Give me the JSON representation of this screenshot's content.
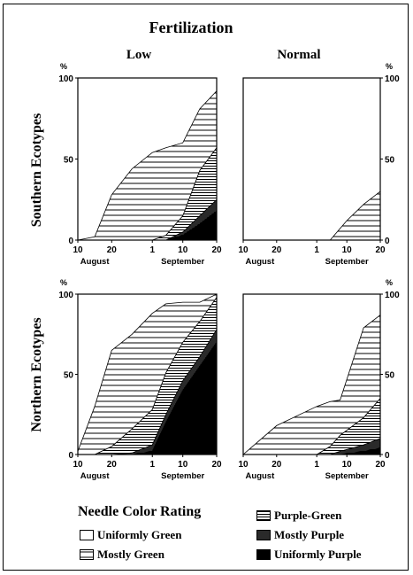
{
  "title": "Fertilization",
  "column_labels": [
    "Low",
    "Normal"
  ],
  "row_labels": [
    "Southern Ecotypes",
    "Northern Ecotypes"
  ],
  "legend_title": "Needle Color Rating",
  "colors": {
    "ink": "#000000",
    "paper": "#ffffff"
  },
  "chart_data": [
    {
      "type": "area",
      "panel": "Southern Ecotypes / Low",
      "percent_label": "%",
      "x_ticks": [
        "10",
        "20",
        "1",
        "10",
        "20"
      ],
      "x_months": [
        "August",
        "September"
      ],
      "y_ticks": [
        "0",
        "50",
        "100"
      ],
      "ylim": [
        0,
        100
      ],
      "x": [
        "Aug 10",
        "Aug 15",
        "Aug 20",
        "Aug 26",
        "Sep 1",
        "Sep 5",
        "Sep 10",
        "Sep 15",
        "Sep 20"
      ],
      "stacked": true,
      "series": [
        {
          "name": "Uniformly Purple",
          "values": [
            0,
            0,
            0,
            0,
            0,
            0,
            3,
            10,
            18
          ]
        },
        {
          "name": "Mostly Purple",
          "values": [
            0,
            0,
            0,
            0,
            0,
            0,
            2,
            5,
            7
          ]
        },
        {
          "name": "Purple-Green",
          "values": [
            0,
            0,
            0,
            0,
            0,
            3,
            10,
            28,
            32
          ]
        },
        {
          "name": "Mostly Green",
          "values": [
            0,
            2,
            28,
            44,
            54,
            54,
            45,
            38,
            35
          ]
        }
      ]
    },
    {
      "type": "area",
      "panel": "Southern Ecotypes / Normal",
      "percent_label": "%",
      "x_ticks": [
        "10",
        "20",
        "1",
        "10",
        "20"
      ],
      "x_months": [
        "August",
        "September"
      ],
      "y_ticks": [
        "0",
        "50",
        "100"
      ],
      "ylim": [
        0,
        100
      ],
      "x": [
        "Aug 10",
        "Aug 20",
        "Sep 1",
        "Sep 5",
        "Sep 10",
        "Sep 15",
        "Sep 20"
      ],
      "stacked": true,
      "series": [
        {
          "name": "Uniformly Purple",
          "values": [
            0,
            0,
            0,
            0,
            0,
            0,
            0
          ]
        },
        {
          "name": "Mostly Purple",
          "values": [
            0,
            0,
            0,
            0,
            0,
            0,
            0
          ]
        },
        {
          "name": "Purple-Green",
          "values": [
            0,
            0,
            0,
            0,
            0,
            0,
            0
          ]
        },
        {
          "name": "Mostly Green",
          "values": [
            0,
            0,
            0,
            0,
            12,
            22,
            30
          ]
        }
      ]
    },
    {
      "type": "area",
      "panel": "Northern Ecotypes / Low",
      "percent_label": "%",
      "x_ticks": [
        "10",
        "20",
        "1",
        "10",
        "20"
      ],
      "x_months": [
        "August",
        "September"
      ],
      "y_ticks": [
        "0",
        "50",
        "100"
      ],
      "ylim": [
        0,
        100
      ],
      "x": [
        "Aug 10",
        "Aug 15",
        "Aug 20",
        "Aug 26",
        "Sep 1",
        "Sep 5",
        "Sep 10",
        "Sep 15",
        "Sep 20"
      ],
      "stacked": true,
      "series": [
        {
          "name": "Uniformly Purple",
          "values": [
            0,
            0,
            0,
            0,
            2,
            20,
            40,
            55,
            70
          ]
        },
        {
          "name": "Mostly Purple",
          "values": [
            0,
            0,
            0,
            1,
            4,
            5,
            6,
            6,
            8
          ]
        },
        {
          "name": "Purple-Green",
          "values": [
            0,
            0,
            5,
            15,
            22,
            26,
            24,
            22,
            20
          ]
        },
        {
          "name": "Mostly Green",
          "values": [
            2,
            30,
            60,
            59,
            60,
            43,
            25,
            12,
            2
          ]
        }
      ]
    },
    {
      "type": "area",
      "panel": "Northern Ecotypes / Normal",
      "percent_label": "%",
      "x_ticks": [
        "10",
        "20",
        "1",
        "10",
        "20"
      ],
      "x_months": [
        "August",
        "September"
      ],
      "y_ticks": [
        "0",
        "50",
        "100"
      ],
      "ylim": [
        0,
        100
      ],
      "x": [
        "Aug 10",
        "Aug 20",
        "Sep 1",
        "Sep 5",
        "Sep 8",
        "Sep 15",
        "Sep 20"
      ],
      "stacked": true,
      "series": [
        {
          "name": "Uniformly Purple",
          "values": [
            0,
            0,
            0,
            0,
            0,
            2,
            4
          ]
        },
        {
          "name": "Mostly Purple",
          "values": [
            0,
            0,
            0,
            0,
            2,
            4,
            6
          ]
        },
        {
          "name": "Purple-Green",
          "values": [
            0,
            0,
            0,
            5,
            10,
            17,
            25
          ]
        },
        {
          "name": "Mostly Green",
          "values": [
            0,
            18,
            30,
            28,
            22,
            56,
            52
          ]
        }
      ]
    }
  ],
  "legend": [
    {
      "name": "Uniformly Green",
      "pattern": "white"
    },
    {
      "name": "Mostly Green",
      "pattern": "hatch-wide"
    },
    {
      "name": "Purple-Green",
      "pattern": "hatch-fine"
    },
    {
      "name": "Mostly Purple",
      "pattern": "hatch-dense"
    },
    {
      "name": "Uniformly Purple",
      "pattern": "solid"
    }
  ]
}
